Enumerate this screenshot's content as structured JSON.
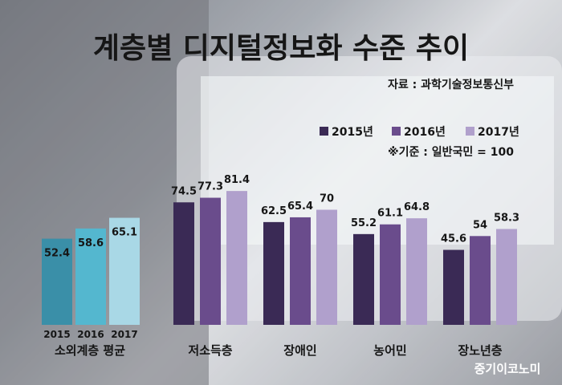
{
  "chart_data": [
    {
      "type": "bar",
      "categories": [
        "2015",
        "2016",
        "2017"
      ],
      "values": [
        52.4,
        58.6,
        65.1
      ],
      "group_label": "소외계층 평균",
      "colors": [
        "#3a8fa8",
        "#54b7cf",
        "#a9d8e6"
      ],
      "ylim": [
        0,
        100
      ]
    },
    {
      "type": "bar",
      "categories": [
        "저소득층",
        "장애인",
        "농어민",
        "장노년층"
      ],
      "series": [
        {
          "name": "2015년",
          "values": [
            74.5,
            62.5,
            55.2,
            45.6
          ],
          "color": "#3a2a55"
        },
        {
          "name": "2016년",
          "values": [
            77.3,
            65.4,
            61.1,
            54
          ],
          "color": "#6a4c8c"
        },
        {
          "name": "2017년",
          "values": [
            81.4,
            70,
            64.8,
            58.3
          ],
          "color": "#b0a0cc"
        }
      ],
      "ylim": [
        0,
        100
      ]
    }
  ],
  "title": "계층별 디지털정보화 수준 추이",
  "source": "자료 : 과학기술정보통신부",
  "baseline_note": "※기준 : 일반국민 = 100",
  "brand": "중기이코노미"
}
